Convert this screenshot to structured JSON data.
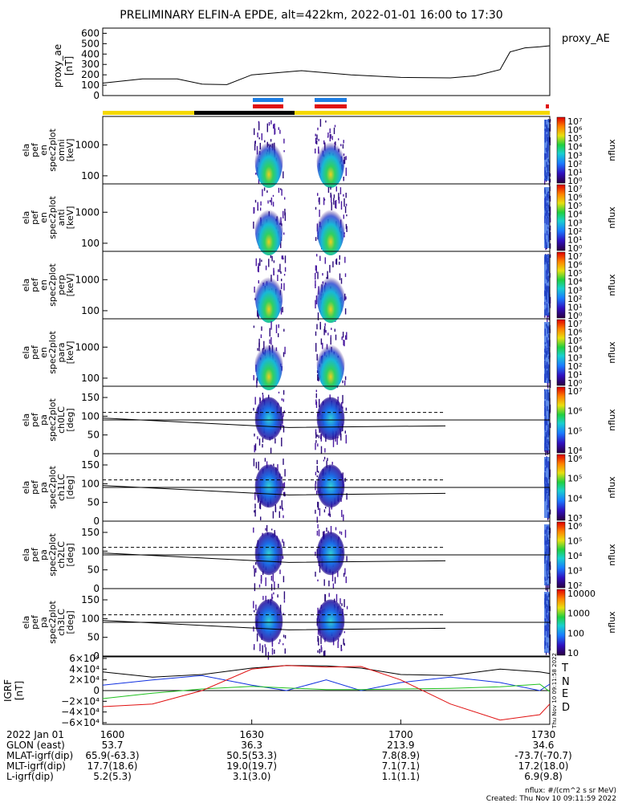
{
  "title": "PRELIMINARY ELFIN-A EPDE, alt=422km, 2022-01-01 16:00 to 17:30",
  "colors": {
    "blue_bar": "#1e7fe6",
    "red_bar": "#e01010",
    "yellow_bar": "#f5d800",
    "black_bar": "#000000",
    "T": "#000000",
    "N": "#1030e0",
    "E": "#20c020",
    "D": "#e01010"
  },
  "top_panel": {
    "ylabel": [
      "proxy_ae",
      "[nT]"
    ],
    "legend": "proxy_AE",
    "ticks": [
      "600",
      "500",
      "400",
      "300",
      "200",
      "100",
      "0"
    ]
  },
  "spec_panels": [
    {
      "ylabel": [
        "ela",
        "pef",
        "en",
        "spec2plot",
        "omni",
        "[keV]"
      ],
      "ticks": [
        "1000",
        "100"
      ],
      "cbar_ticks": [
        "10⁷",
        "10⁶",
        "10⁵",
        "10⁴",
        "10³",
        "10²",
        "10¹",
        "10⁰"
      ],
      "cbar_label": "nflux"
    },
    {
      "ylabel": [
        "ela",
        "pef",
        "en",
        "spec2plot",
        "anti",
        "[keV]"
      ],
      "ticks": [
        "1000",
        "100"
      ],
      "cbar_ticks": [
        "10⁷",
        "10⁶",
        "10⁵",
        "10⁴",
        "10³",
        "10²",
        "10¹",
        "10⁰"
      ],
      "cbar_label": "nflux"
    },
    {
      "ylabel": [
        "ela",
        "pef",
        "en",
        "spec2plot",
        "perp",
        "[keV]"
      ],
      "ticks": [
        "1000",
        "100"
      ],
      "cbar_ticks": [
        "10⁷",
        "10⁶",
        "10⁵",
        "10⁴",
        "10³",
        "10²",
        "10¹",
        "10⁰"
      ],
      "cbar_label": "nflux"
    },
    {
      "ylabel": [
        "ela",
        "pef",
        "en",
        "spec2plot",
        "para",
        "[keV]"
      ],
      "ticks": [
        "1000",
        "100"
      ],
      "cbar_ticks": [
        "10⁷",
        "10⁶",
        "10⁵",
        "10⁴",
        "10³",
        "10²",
        "10¹",
        "10⁰"
      ],
      "cbar_label": "nflux"
    },
    {
      "ylabel": [
        "ela",
        "pef",
        "pa",
        "spec2plot",
        "ch0LC",
        "[deg]"
      ],
      "ticks": [
        "150",
        "100",
        "50",
        "0"
      ],
      "cbar_ticks": [
        "10⁷",
        "10⁶",
        "10⁵",
        "10⁴"
      ],
      "cbar_label": "nflux"
    },
    {
      "ylabel": [
        "ela",
        "pef",
        "pa",
        "spec2plot",
        "ch1LC",
        "[deg]"
      ],
      "ticks": [
        "150",
        "100",
        "50",
        "0"
      ],
      "cbar_ticks": [
        "10⁶",
        "10⁵",
        "10⁴",
        "10³"
      ],
      "cbar_label": "nflux"
    },
    {
      "ylabel": [
        "ela",
        "pef",
        "pa",
        "spec2plot",
        "ch2LC",
        "[deg]"
      ],
      "ticks": [
        "150",
        "100",
        "50",
        "0"
      ],
      "cbar_ticks": [
        "10⁶",
        "10⁵",
        "10⁴",
        "10³",
        "10²"
      ],
      "cbar_label": "nflux"
    },
    {
      "ylabel": [
        "ela",
        "pef",
        "pa",
        "spec2plot",
        "ch3LC",
        "[deg]"
      ],
      "ticks": [
        "150",
        "100",
        "50",
        "0"
      ],
      "cbar_ticks": [
        "10000",
        "1000",
        "100",
        "10"
      ],
      "cbar_label": "nflux"
    }
  ],
  "igrf_panel": {
    "ylabel": [
      "IGRF",
      "[nT]"
    ],
    "ticks": [
      "6×10⁴",
      "4×10⁴",
      "2×10⁴",
      "0",
      "−2×10⁴",
      "−4×10⁴",
      "−6×10⁴"
    ],
    "legend": [
      "T",
      "N",
      "E",
      "D"
    ]
  },
  "side_stamp": "Thu Nov 10 09:11:58 2022",
  "time_axis": {
    "row_labels": [
      "2022 Jan 01",
      "GLON (east)",
      "MLAT-igrf(dip)",
      "MLT-igrf(dip)",
      "L-igrf(dip)"
    ],
    "columns": [
      {
        "time": "1600",
        "glon": "53.7",
        "mlat": "65.9(-63.3)",
        "mlt": "17.7(18.6)",
        "l": "5.2(5.3)"
      },
      {
        "time": "1630",
        "glon": "36.3",
        "mlat": "50.5(53.3)",
        "mlt": "19.0(19.7)",
        "l": "3.1(3.0)"
      },
      {
        "time": "1700",
        "glon": "213.9",
        "mlat": "7.8(8.9)",
        "mlt": "7.1(7.1)",
        "l": "1.1(1.1)"
      },
      {
        "time": "1730",
        "glon": "34.6",
        "mlat": "-73.7(-70.7)",
        "mlt": "17.2(18.0)",
        "l": "6.9(9.8)"
      }
    ]
  },
  "footer": {
    "units": "nflux: #/(cm^2 s sr MeV)",
    "created": "Created: Thu Nov 10 09:11:59 2022"
  },
  "chart_data": [
    {
      "type": "line",
      "title": "PRELIMINARY ELFIN-A EPDE, alt=422km, 2022-01-01 16:00 to 17:30",
      "ylabel": "proxy_ae [nT]",
      "ylim": [
        0,
        650
      ],
      "x_minutes": [
        0,
        8,
        15,
        20,
        25,
        30,
        40,
        50,
        60,
        70,
        75,
        80,
        82,
        85,
        88,
        90
      ],
      "series": [
        {
          "name": "proxy_AE",
          "values": [
            120,
            160,
            160,
            110,
            105,
            200,
            240,
            200,
            175,
            170,
            190,
            250,
            420,
            460,
            470,
            480
          ]
        }
      ]
    },
    {
      "type": "line",
      "ylabel": "IGRF [nT]",
      "ylim": [
        -60000,
        60000
      ],
      "x_minutes": [
        0,
        10,
        20,
        30,
        37,
        45,
        52,
        60,
        70,
        80,
        88,
        90
      ],
      "series": [
        {
          "name": "T",
          "values": [
            35000,
            25000,
            30000,
            42000,
            47000,
            46000,
            42000,
            30000,
            28000,
            40000,
            35000,
            32000
          ]
        },
        {
          "name": "N",
          "values": [
            10000,
            20000,
            28000,
            10000,
            0,
            20000,
            0,
            15000,
            25000,
            15000,
            0,
            12000
          ]
        },
        {
          "name": "E",
          "values": [
            -15000,
            -5000,
            3000,
            8000,
            5000,
            2000,
            2000,
            3000,
            4000,
            7000,
            12000,
            -2000
          ]
        },
        {
          "name": "D",
          "values": [
            -30000,
            -25000,
            0,
            40000,
            47000,
            44000,
            45000,
            20000,
            -25000,
            -55000,
            -45000,
            -25000
          ]
        }
      ]
    }
  ]
}
